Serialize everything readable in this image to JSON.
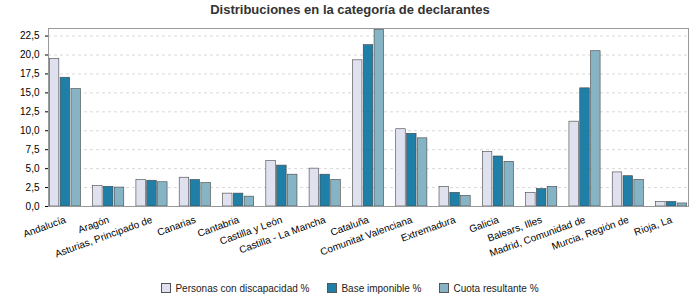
{
  "chart_data": {
    "type": "bar",
    "title": "Distribuciones en la categoría de declarantes",
    "categories": [
      "Andalucía",
      "Aragón",
      "Asturias, Principado de",
      "Canarias",
      "Cantabria",
      "Castilla y León",
      "Castilla - La Mancha",
      "Cataluña",
      "Comunitat Valenciana",
      "Extremadura",
      "Galicia",
      "Balears, Illes",
      "Madrid, Comunidad de",
      "Murcia, Región de",
      "Rioja, La"
    ],
    "series": [
      {
        "name": "Personas con discapacidad %",
        "color": "#dfe1ef",
        "values": [
          19.5,
          2.7,
          3.5,
          3.8,
          1.7,
          6.0,
          5.0,
          19.3,
          10.2,
          2.6,
          7.2,
          1.8,
          11.2,
          4.5,
          0.6
        ]
      },
      {
        "name": "Base imponible %",
        "color": "#1f7fa6",
        "values": [
          17.0,
          2.6,
          3.4,
          3.5,
          1.7,
          5.4,
          4.2,
          21.3,
          9.6,
          1.8,
          6.6,
          2.3,
          15.6,
          4.0,
          0.6
        ]
      },
      {
        "name": "Cuota resultante %",
        "color": "#87b4c4",
        "values": [
          15.5,
          2.5,
          3.2,
          3.1,
          1.3,
          4.2,
          3.5,
          23.3,
          9.0,
          1.4,
          5.9,
          2.6,
          20.5,
          3.5,
          0.4
        ]
      }
    ],
    "ylim": [
      0,
      23.5
    ],
    "yticks": [
      {
        "value": 0,
        "label": "0,0"
      },
      {
        "value": 2.5,
        "label": "2,5"
      },
      {
        "value": 5,
        "label": "5,0"
      },
      {
        "value": 7.5,
        "label": "7,5"
      },
      {
        "value": 10,
        "label": "10,0"
      },
      {
        "value": 12.5,
        "label": "12,5"
      },
      {
        "value": 15,
        "label": "15,0"
      },
      {
        "value": 17.5,
        "label": "17,5"
      },
      {
        "value": 20,
        "label": "20,0"
      },
      {
        "value": 22.5,
        "label": "22,5"
      }
    ],
    "grid": true,
    "legend": "bottom"
  }
}
